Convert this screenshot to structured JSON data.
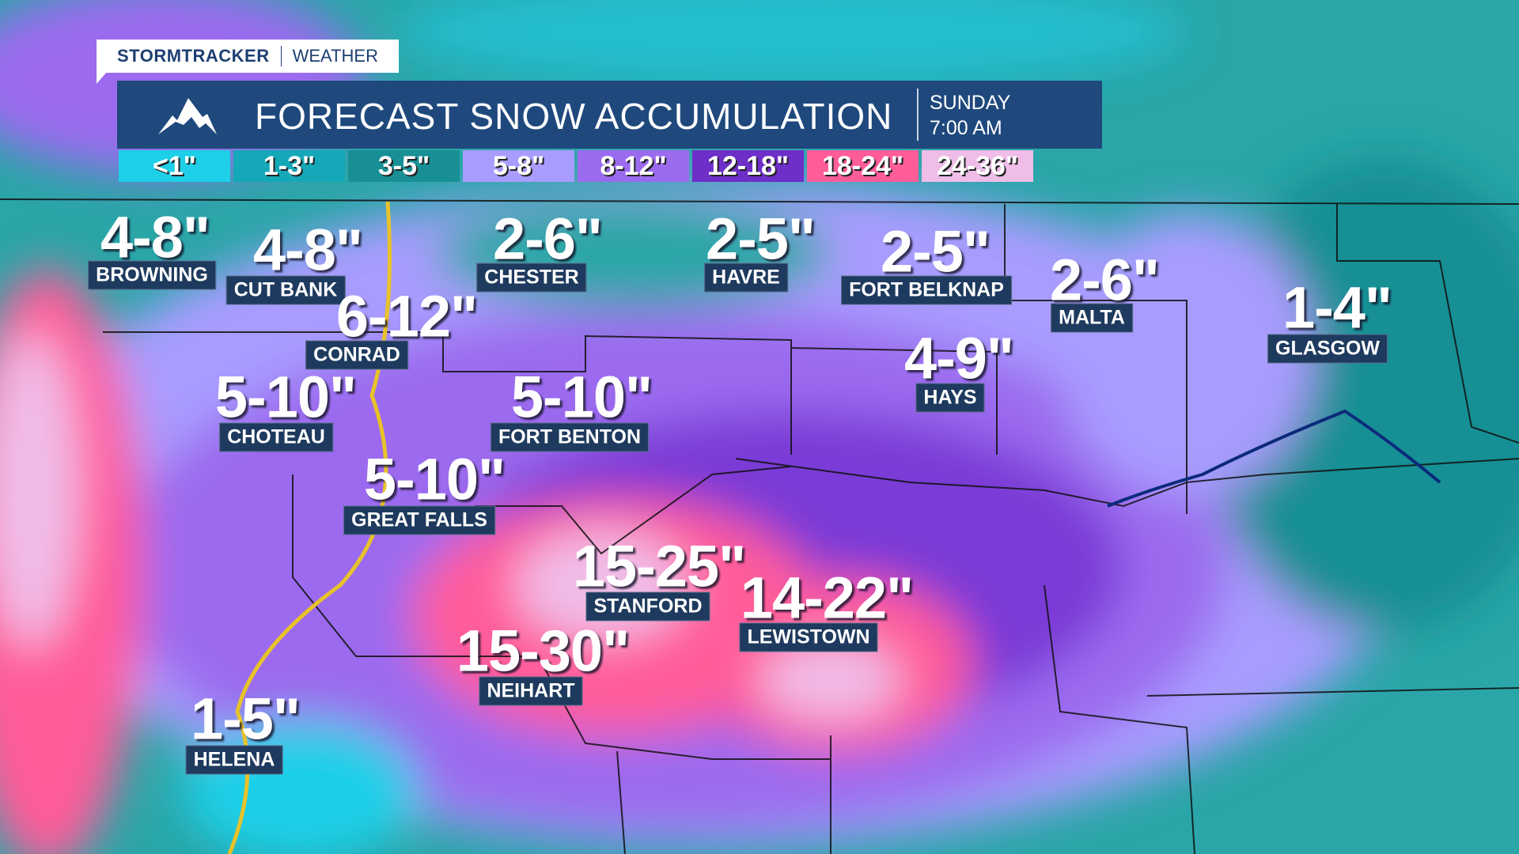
{
  "brand": {
    "name": "STORMTRACKER",
    "sub": "WEATHER"
  },
  "header": {
    "title": "FORECAST SNOW ACCUMULATION",
    "day": "SUNDAY",
    "time": "7:00 AM",
    "icon": "mountain-icon"
  },
  "legend": [
    {
      "label": "<1\"",
      "color": "#1ecfe8"
    },
    {
      "label": "1-3\"",
      "color": "#14a8b8"
    },
    {
      "label": "3-5\"",
      "color": "#178f95"
    },
    {
      "label": "5-8\"",
      "color": "#a99cff"
    },
    {
      "label": "8-12\"",
      "color": "#9b6bef"
    },
    {
      "label": "12-18\"",
      "color": "#6e2ec8"
    },
    {
      "label": "18-24\"",
      "color": "#ff5c9a"
    },
    {
      "label": "24-36\"",
      "color": "#f0bde8"
    }
  ],
  "cities": [
    {
      "name": "BROWNING",
      "amount": "4-8\""
    },
    {
      "name": "CUT BANK",
      "amount": "4-8\""
    },
    {
      "name": "CHESTER",
      "amount": "2-6\""
    },
    {
      "name": "HAVRE",
      "amount": "2-5\""
    },
    {
      "name": "FORT BELKNAP",
      "amount": "2-5\""
    },
    {
      "name": "MALTA",
      "amount": "2-6\""
    },
    {
      "name": "GLASGOW",
      "amount": "1-4\""
    },
    {
      "name": "CONRAD",
      "amount": "6-12\""
    },
    {
      "name": "HAYS",
      "amount": "4-9\""
    },
    {
      "name": "CHOTEAU",
      "amount": "5-10\""
    },
    {
      "name": "FORT BENTON",
      "amount": "5-10\""
    },
    {
      "name": "GREAT FALLS",
      "amount": "5-10\""
    },
    {
      "name": "STANFORD",
      "amount": "15-25\""
    },
    {
      "name": "LEWISTOWN",
      "amount": "14-22\""
    },
    {
      "name": "NEIHART",
      "amount": "15-30\""
    },
    {
      "name": "HELENA",
      "amount": "1-5\""
    }
  ]
}
